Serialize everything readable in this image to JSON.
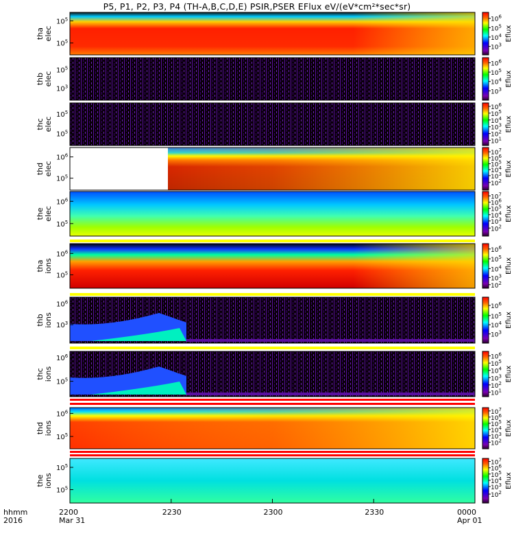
{
  "title": "P5, P1, P2, P3, P4 (TH-A,B,C,D,E) PSIR,PSER EFlux eV/(eV*cm²*sec*sr)",
  "footer": {
    "time_label": "hhmm",
    "year_label": "2016",
    "ticks": [
      {
        "time": "2200",
        "date": "Mar 31"
      },
      {
        "time": "2230",
        "date": ""
      },
      {
        "time": "2300",
        "date": ""
      },
      {
        "time": "2330",
        "date": ""
      },
      {
        "time": "0000",
        "date": "Apr 01"
      }
    ]
  },
  "chart_data": {
    "type": "heatmap",
    "x_axis": {
      "tick_labels": [
        "2200",
        "2230",
        "2300",
        "2330",
        "0000"
      ],
      "date_labels": [
        "Mar 31",
        "",
        "",
        "",
        "Apr 01"
      ],
      "range_minutes": [
        0,
        120
      ]
    },
    "colorbar": {
      "label": "Eflux",
      "colormap": "rainbow (purple-blue-cyan-green-yellow-red)"
    },
    "panels": [
      {
        "ylabel": [
          "tha",
          "elec"
        ],
        "yticks": [
          {
            "base": "10",
            "exp": "5",
            "pos": 0.2
          },
          {
            "base": "10",
            "exp": "5",
            "pos": 0.72
          }
        ],
        "cbar_ticks": [
          {
            "exp": "6",
            "pos": 0.14
          },
          {
            "exp": "5",
            "pos": 0.36
          },
          {
            "exp": "4",
            "pos": 0.58
          },
          {
            "exp": "3",
            "pos": 0.8
          }
        ]
      },
      {
        "ylabel": [
          "thb",
          "elec"
        ],
        "yticks": [
          {
            "base": "10",
            "exp": "5",
            "pos": 0.28
          },
          {
            "base": "10",
            "exp": "3",
            "pos": 0.72
          }
        ],
        "cbar_ticks": [
          {
            "exp": "6",
            "pos": 0.12
          },
          {
            "exp": "5",
            "pos": 0.34
          },
          {
            "exp": "4",
            "pos": 0.56
          },
          {
            "exp": "3",
            "pos": 0.78
          }
        ]
      },
      {
        "ylabel": [
          "thc",
          "elec"
        ],
        "yticks": [
          {
            "base": "10",
            "exp": "5",
            "pos": 0.26
          },
          {
            "base": "10",
            "exp": "5",
            "pos": 0.72
          }
        ],
        "cbar_ticks": [
          {
            "exp": "6",
            "pos": 0.08
          },
          {
            "exp": "5",
            "pos": 0.24
          },
          {
            "exp": "4",
            "pos": 0.4
          },
          {
            "exp": "3",
            "pos": 0.56
          },
          {
            "exp": "2",
            "pos": 0.72
          },
          {
            "exp": "1",
            "pos": 0.88
          }
        ]
      },
      {
        "ylabel": [
          "thd",
          "elec"
        ],
        "yticks": [
          {
            "base": "10",
            "exp": "6",
            "pos": 0.22
          },
          {
            "base": "10",
            "exp": "5",
            "pos": 0.72
          }
        ],
        "cbar_ticks": [
          {
            "exp": "7",
            "pos": 0.1
          },
          {
            "exp": "6",
            "pos": 0.24
          },
          {
            "exp": "5",
            "pos": 0.38
          },
          {
            "exp": "4",
            "pos": 0.52
          },
          {
            "exp": "3",
            "pos": 0.66
          },
          {
            "exp": "2",
            "pos": 0.82
          }
        ]
      },
      {
        "ylabel": [
          "the",
          "elec"
        ],
        "yticks": [
          {
            "base": "10",
            "exp": "6",
            "pos": 0.22
          },
          {
            "base": "10",
            "exp": "5",
            "pos": 0.72
          }
        ],
        "cbar_ticks": [
          {
            "exp": "7",
            "pos": 0.1
          },
          {
            "exp": "6",
            "pos": 0.24
          },
          {
            "exp": "5",
            "pos": 0.38
          },
          {
            "exp": "4",
            "pos": 0.52
          },
          {
            "exp": "3",
            "pos": 0.66
          },
          {
            "exp": "2",
            "pos": 0.82
          }
        ]
      },
      {
        "ylabel": [
          "tha",
          "ions"
        ],
        "yticks": [
          {
            "base": "10",
            "exp": "6",
            "pos": 0.22
          },
          {
            "base": "10",
            "exp": "5",
            "pos": 0.7
          }
        ],
        "cbar_ticks": [
          {
            "exp": "6",
            "pos": 0.12
          },
          {
            "exp": "5",
            "pos": 0.34
          },
          {
            "exp": "4",
            "pos": 0.56
          },
          {
            "exp": "3",
            "pos": 0.76
          },
          {
            "exp": "2",
            "pos": 0.92
          }
        ]
      },
      {
        "ylabel": [
          "thb",
          "ions"
        ],
        "yticks": [
          {
            "base": "10",
            "exp": "6",
            "pos": 0.14
          },
          {
            "base": "10",
            "exp": "3",
            "pos": 0.6
          }
        ],
        "cbar_ticks": [
          {
            "exp": "6",
            "pos": 0.18
          },
          {
            "exp": "5",
            "pos": 0.4
          },
          {
            "exp": "4",
            "pos": 0.6
          },
          {
            "exp": "3",
            "pos": 0.8
          }
        ]
      },
      {
        "ylabel": [
          "thc",
          "ions"
        ],
        "yticks": [
          {
            "base": "10",
            "exp": "6",
            "pos": 0.14
          },
          {
            "base": "10",
            "exp": "5",
            "pos": 0.66
          }
        ],
        "cbar_ticks": [
          {
            "exp": "6",
            "pos": 0.1
          },
          {
            "exp": "5",
            "pos": 0.26
          },
          {
            "exp": "4",
            "pos": 0.42
          },
          {
            "exp": "3",
            "pos": 0.58
          },
          {
            "exp": "2",
            "pos": 0.74
          },
          {
            "exp": "1",
            "pos": 0.9
          }
        ]
      },
      {
        "ylabel": [
          "thd",
          "ions"
        ],
        "yticks": [
          {
            "base": "10",
            "exp": "6",
            "pos": 0.14
          },
          {
            "base": "10",
            "exp": "5",
            "pos": 0.7
          }
        ],
        "cbar_ticks": [
          {
            "exp": "7",
            "pos": 0.08
          },
          {
            "exp": "6",
            "pos": 0.23
          },
          {
            "exp": "5",
            "pos": 0.38
          },
          {
            "exp": "4",
            "pos": 0.53
          },
          {
            "exp": "3",
            "pos": 0.68
          },
          {
            "exp": "2",
            "pos": 0.84
          }
        ]
      },
      {
        "ylabel": [
          "the",
          "ions"
        ],
        "yticks": [
          {
            "base": "10",
            "exp": "5",
            "pos": 0.2
          },
          {
            "base": "10",
            "exp": "5",
            "pos": 0.7
          }
        ],
        "cbar_ticks": [
          {
            "exp": "7",
            "pos": 0.07
          },
          {
            "exp": "6",
            "pos": 0.21
          },
          {
            "exp": "5",
            "pos": 0.35
          },
          {
            "exp": "4",
            "pos": 0.49
          },
          {
            "exp": "3",
            "pos": 0.63
          },
          {
            "exp": "2",
            "pos": 0.8
          }
        ]
      }
    ]
  }
}
